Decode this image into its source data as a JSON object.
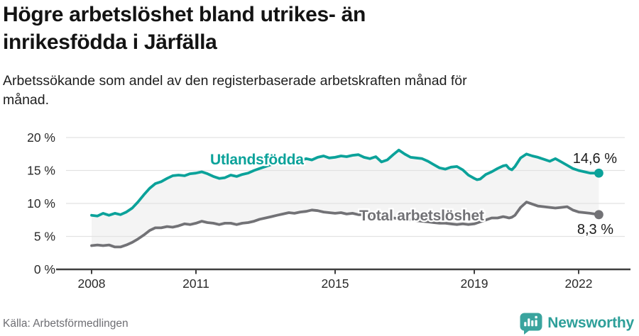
{
  "header": {
    "title_lines": [
      "Högre arbetslöshet bland utrikes- än",
      "inrikesfödda i Järfälla"
    ],
    "subtitle_lines": [
      "Arbetssökande som andel av den registerbaserade arbetskraften månad för",
      "månad."
    ]
  },
  "footer": {
    "source": "Källa: Arbetsförmedlingen",
    "brand": "Newsworthy",
    "brand_color": "#2d9f99"
  },
  "chart_data": {
    "type": "line",
    "title": "Högre arbetslöshet bland utrikes- än inrikesfödda i Järfälla",
    "x_axis": {
      "ticks": [
        2008,
        2011,
        2015,
        2019,
        2022
      ],
      "labels": [
        "2008",
        "2011",
        "2015",
        "2019",
        "2022"
      ],
      "range": [
        2008,
        2022.58
      ]
    },
    "y_axis": {
      "ticks": [
        0,
        5,
        10,
        15,
        20
      ],
      "labels": [
        "0 %",
        "5 %",
        "10 %",
        "15 %",
        "20 %"
      ],
      "ylim": [
        0,
        21
      ]
    },
    "grid": true,
    "fill_between_color": "#f4f4f4",
    "grid_color": "#e2e2e2",
    "axis_color": "#3f3f3f",
    "tick_label_color": "#2a2a2a",
    "value_label_color": "#1a1a1a",
    "series": [
      {
        "name": "Utlandsfödda",
        "color": "#0ba29a",
        "end_label": "14,6 %",
        "end_value": 14.6,
        "points": [
          [
            2008.0,
            8.2
          ],
          [
            2008.17,
            8.1
          ],
          [
            2008.33,
            8.5
          ],
          [
            2008.5,
            8.2
          ],
          [
            2008.67,
            8.5
          ],
          [
            2008.83,
            8.3
          ],
          [
            2009.0,
            8.7
          ],
          [
            2009.17,
            9.3
          ],
          [
            2009.33,
            10.2
          ],
          [
            2009.5,
            11.3
          ],
          [
            2009.67,
            12.3
          ],
          [
            2009.83,
            13.0
          ],
          [
            2010.0,
            13.3
          ],
          [
            2010.17,
            13.8
          ],
          [
            2010.33,
            14.2
          ],
          [
            2010.5,
            14.3
          ],
          [
            2010.67,
            14.2
          ],
          [
            2010.83,
            14.5
          ],
          [
            2011.0,
            14.6
          ],
          [
            2011.17,
            14.8
          ],
          [
            2011.33,
            14.5
          ],
          [
            2011.5,
            14.1
          ],
          [
            2011.67,
            13.8
          ],
          [
            2011.83,
            13.9
          ],
          [
            2012.0,
            14.3
          ],
          [
            2012.17,
            14.1
          ],
          [
            2012.33,
            14.4
          ],
          [
            2012.5,
            14.6
          ],
          [
            2012.67,
            15.0
          ],
          [
            2012.83,
            15.3
          ],
          [
            2013.0,
            15.6
          ],
          [
            2013.17,
            15.9
          ],
          [
            2013.33,
            16.1
          ],
          [
            2013.5,
            16.2
          ],
          [
            2013.67,
            16.4
          ],
          [
            2013.83,
            16.6
          ],
          [
            2014.0,
            16.5
          ],
          [
            2014.17,
            16.8
          ],
          [
            2014.33,
            16.6
          ],
          [
            2014.5,
            17.0
          ],
          [
            2014.67,
            17.2
          ],
          [
            2014.83,
            16.9
          ],
          [
            2015.0,
            17.0
          ],
          [
            2015.17,
            17.2
          ],
          [
            2015.33,
            17.1
          ],
          [
            2015.5,
            17.3
          ],
          [
            2015.67,
            17.4
          ],
          [
            2015.83,
            17.0
          ],
          [
            2016.0,
            16.8
          ],
          [
            2016.17,
            17.1
          ],
          [
            2016.33,
            16.3
          ],
          [
            2016.5,
            16.6
          ],
          [
            2016.67,
            17.4
          ],
          [
            2016.83,
            18.1
          ],
          [
            2017.0,
            17.5
          ],
          [
            2017.17,
            17.0
          ],
          [
            2017.33,
            16.9
          ],
          [
            2017.5,
            16.8
          ],
          [
            2017.67,
            16.4
          ],
          [
            2017.83,
            15.9
          ],
          [
            2018.0,
            15.4
          ],
          [
            2018.17,
            15.2
          ],
          [
            2018.33,
            15.5
          ],
          [
            2018.5,
            15.6
          ],
          [
            2018.67,
            15.1
          ],
          [
            2018.83,
            14.3
          ],
          [
            2019.0,
            13.8
          ],
          [
            2019.08,
            13.6
          ],
          [
            2019.17,
            13.7
          ],
          [
            2019.33,
            14.4
          ],
          [
            2019.5,
            14.8
          ],
          [
            2019.67,
            15.3
          ],
          [
            2019.83,
            15.7
          ],
          [
            2019.92,
            15.8
          ],
          [
            2020.0,
            15.3
          ],
          [
            2020.08,
            15.1
          ],
          [
            2020.17,
            15.6
          ],
          [
            2020.33,
            16.9
          ],
          [
            2020.5,
            17.5
          ],
          [
            2020.67,
            17.2
          ],
          [
            2020.83,
            17.0
          ],
          [
            2021.0,
            16.7
          ],
          [
            2021.17,
            16.4
          ],
          [
            2021.33,
            16.8
          ],
          [
            2021.5,
            16.3
          ],
          [
            2021.67,
            15.8
          ],
          [
            2021.83,
            15.3
          ],
          [
            2022.0,
            15.0
          ],
          [
            2022.17,
            14.8
          ],
          [
            2022.33,
            14.6
          ],
          [
            2022.58,
            14.6
          ]
        ]
      },
      {
        "name": "Total arbetslöshet",
        "color": "#727276",
        "end_label": "8,3 %",
        "end_value": 8.3,
        "points": [
          [
            2008.0,
            3.6
          ],
          [
            2008.17,
            3.7
          ],
          [
            2008.33,
            3.6
          ],
          [
            2008.5,
            3.7
          ],
          [
            2008.67,
            3.4
          ],
          [
            2008.83,
            3.4
          ],
          [
            2009.0,
            3.7
          ],
          [
            2009.17,
            4.1
          ],
          [
            2009.33,
            4.6
          ],
          [
            2009.5,
            5.2
          ],
          [
            2009.67,
            5.9
          ],
          [
            2009.83,
            6.3
          ],
          [
            2010.0,
            6.3
          ],
          [
            2010.17,
            6.5
          ],
          [
            2010.33,
            6.4
          ],
          [
            2010.5,
            6.6
          ],
          [
            2010.67,
            6.9
          ],
          [
            2010.83,
            6.8
          ],
          [
            2011.0,
            7.0
          ],
          [
            2011.17,
            7.3
          ],
          [
            2011.33,
            7.1
          ],
          [
            2011.5,
            7.0
          ],
          [
            2011.67,
            6.8
          ],
          [
            2011.83,
            7.0
          ],
          [
            2012.0,
            7.0
          ],
          [
            2012.17,
            6.8
          ],
          [
            2012.33,
            7.0
          ],
          [
            2012.5,
            7.1
          ],
          [
            2012.67,
            7.3
          ],
          [
            2012.83,
            7.6
          ],
          [
            2013.0,
            7.8
          ],
          [
            2013.17,
            8.0
          ],
          [
            2013.33,
            8.2
          ],
          [
            2013.5,
            8.4
          ],
          [
            2013.67,
            8.6
          ],
          [
            2013.83,
            8.5
          ],
          [
            2014.0,
            8.7
          ],
          [
            2014.17,
            8.8
          ],
          [
            2014.33,
            9.0
          ],
          [
            2014.5,
            8.9
          ],
          [
            2014.67,
            8.7
          ],
          [
            2014.83,
            8.6
          ],
          [
            2015.0,
            8.5
          ],
          [
            2015.17,
            8.6
          ],
          [
            2015.33,
            8.4
          ],
          [
            2015.5,
            8.5
          ],
          [
            2015.67,
            8.3
          ],
          [
            2015.83,
            8.3
          ],
          [
            2016.0,
            8.2
          ],
          [
            2016.17,
            8.1
          ],
          [
            2016.33,
            8.0
          ],
          [
            2016.5,
            7.9
          ],
          [
            2016.67,
            7.8
          ],
          [
            2016.83,
            7.7
          ],
          [
            2017.0,
            7.6
          ],
          [
            2017.17,
            7.5
          ],
          [
            2017.33,
            7.4
          ],
          [
            2017.5,
            7.3
          ],
          [
            2017.67,
            7.2
          ],
          [
            2017.83,
            7.1
          ],
          [
            2018.0,
            7.0
          ],
          [
            2018.17,
            7.0
          ],
          [
            2018.33,
            6.9
          ],
          [
            2018.5,
            6.8
          ],
          [
            2018.67,
            6.9
          ],
          [
            2018.83,
            6.8
          ],
          [
            2019.0,
            6.9
          ],
          [
            2019.17,
            7.2
          ],
          [
            2019.33,
            7.5
          ],
          [
            2019.5,
            7.8
          ],
          [
            2019.67,
            7.8
          ],
          [
            2019.83,
            8.0
          ],
          [
            2019.92,
            7.9
          ],
          [
            2020.0,
            7.8
          ],
          [
            2020.08,
            7.9
          ],
          [
            2020.17,
            8.2
          ],
          [
            2020.33,
            9.4
          ],
          [
            2020.5,
            10.2
          ],
          [
            2020.67,
            9.9
          ],
          [
            2020.83,
            9.6
          ],
          [
            2021.0,
            9.5
          ],
          [
            2021.17,
            9.4
          ],
          [
            2021.33,
            9.3
          ],
          [
            2021.5,
            9.4
          ],
          [
            2021.67,
            9.5
          ],
          [
            2021.83,
            9.0
          ],
          [
            2022.0,
            8.7
          ],
          [
            2022.17,
            8.6
          ],
          [
            2022.33,
            8.5
          ],
          [
            2022.58,
            8.3
          ]
        ]
      }
    ]
  }
}
